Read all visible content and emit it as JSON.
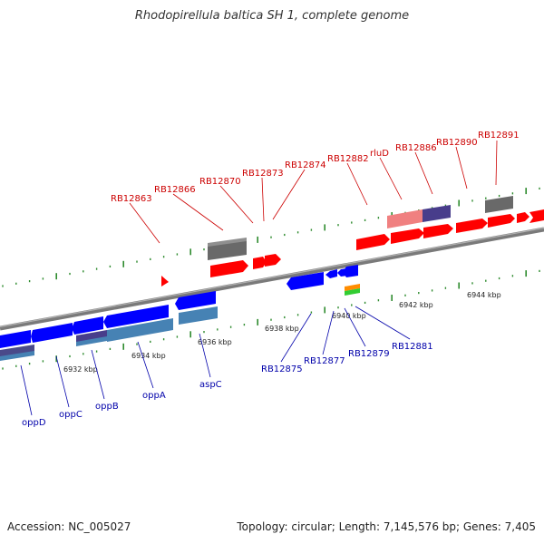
{
  "title": "Rhodopirellula baltica SH 1, complete genome",
  "footer": {
    "accession": "Accession: NC_005027",
    "summary": "Topology: circular; Length: 7,145,576 bp; Genes: 7,405"
  },
  "colors": {
    "forward": "#ff0000",
    "forward_light": "#f08080",
    "reverse": "#0000ff",
    "reverse_light": "#4682b4",
    "other": "#6a5acd",
    "pseudo": "#696969",
    "label_top": "#cc0000",
    "label_bottom": "#0000aa"
  },
  "kbp_ticks": [
    "6932 kbp",
    "6934 kbp",
    "6936 kbp",
    "6938 kbp",
    "6940 kbp",
    "6942 kbp",
    "6944 kbp"
  ],
  "top_labels": [
    "RB12863",
    "RB12866",
    "RB12870",
    "RB12873",
    "RB12874",
    "RB12882",
    "rluD",
    "RB12886",
    "RB12890",
    "RB12891"
  ],
  "bottom_labels": [
    "oppD",
    "oppC",
    "oppB",
    "oppA",
    "aspC",
    "RB12875",
    "RB12877",
    "RB12879",
    "RB12881"
  ]
}
